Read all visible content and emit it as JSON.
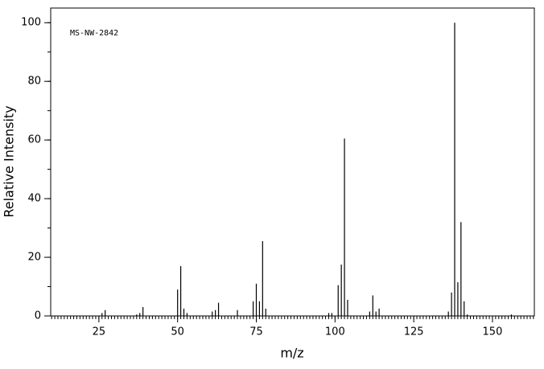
{
  "chart_data": {
    "type": "stick",
    "annotation": "MS-NW-2842",
    "xlabel": "m/z",
    "ylabel": "Relative Intensity",
    "x": [
      26,
      27,
      37,
      38,
      39,
      50,
      51,
      52,
      53,
      61,
      62,
      63,
      69,
      74,
      75,
      76,
      77,
      78,
      98,
      99,
      101,
      102,
      103,
      104,
      111,
      112,
      113,
      114,
      136,
      137,
      138,
      139,
      140,
      141,
      142,
      156
    ],
    "values": [
      1,
      2,
      0.5,
      1,
      3,
      9,
      17,
      2.5,
      1,
      1.5,
      2,
      4.5,
      2,
      5,
      11,
      5,
      25.5,
      2.5,
      1,
      1,
      10.5,
      17.5,
      60.5,
      5.5,
      1.5,
      7,
      1.5,
      2.5,
      1.5,
      8,
      100,
      11.5,
      32,
      5,
      0.5,
      0.5
    ],
    "color": "#000000",
    "xlim": [
      9.7,
      163.3
    ],
    "ylim": [
      0,
      105
    ],
    "xticks": [
      25,
      50,
      75,
      100,
      125,
      150
    ],
    "yticks": [
      0,
      20,
      40,
      60,
      80,
      100
    ],
    "xminor_step": 1,
    "yminor_step": 10
  }
}
